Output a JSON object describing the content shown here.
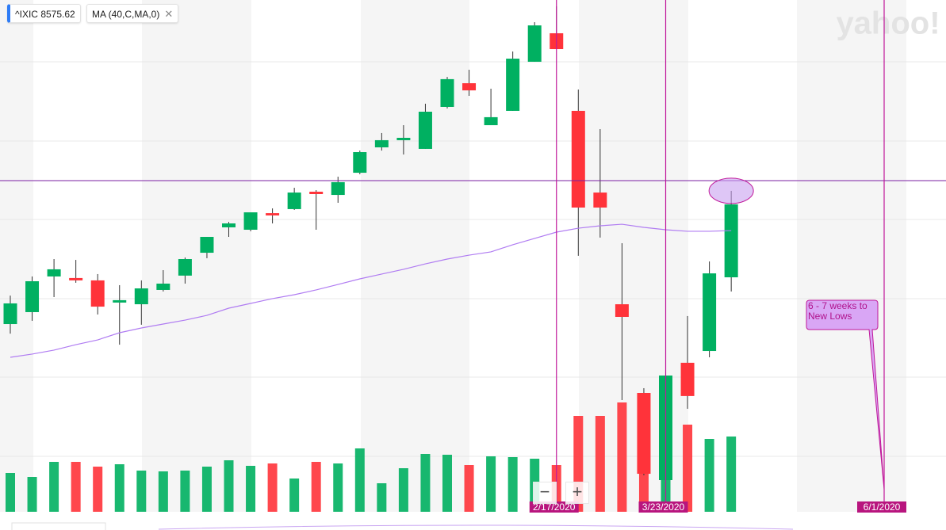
{
  "chart_data": {
    "type": "candlestick",
    "symbol": "^IXIC",
    "price": 8575.62,
    "indicator": "MA (40,C,MA,0)",
    "watermark": "yahoo!",
    "zoom_out": "−",
    "zoom_in": "+",
    "categories": [
      null,
      null,
      null,
      null,
      null,
      null,
      null,
      null,
      null,
      null,
      null,
      null,
      null,
      null,
      null,
      null,
      null,
      null,
      null,
      null,
      null,
      null,
      null,
      null,
      null,
      "2/17/2020",
      null,
      null,
      null,
      null,
      "3/23/2020",
      null,
      null,
      null,
      null,
      null,
      null,
      null,
      null,
      null,
      "6/1/2020"
    ],
    "open": [
      7691,
      7776,
      8030,
      8019,
      8002,
      7844,
      7832,
      7934,
      8036,
      8199,
      8380,
      8363,
      8481,
      8510,
      8634,
      8611,
      8769,
      8950,
      9001,
      8939,
      9238,
      9407,
      9108,
      9210,
      9560,
      9763,
      9210,
      8628,
      7832,
      7200,
      6579,
      7415,
      7499,
      8024,
      null,
      null,
      null,
      null,
      null,
      null,
      null
    ],
    "high": [
      7894,
      8030,
      8154,
      8148,
      8047,
      7968,
      8002,
      8075,
      8165,
      8312,
      8419,
      8487,
      8515,
      8662,
      8645,
      8741,
      8927,
      9052,
      9108,
      9261,
      9452,
      9503,
      9368,
      9633,
      9842,
      9955,
      9362,
      9080,
      8267,
      7234,
      7669,
      7748,
      8137,
      8640,
      null,
      null,
      null,
      null,
      null,
      null,
      null
    ],
    "low": [
      7623,
      7714,
      7883,
      7985,
      7759,
      7544,
      7686,
      7923,
      7979,
      8160,
      8312,
      8352,
      8408,
      8504,
      8363,
      8555,
      8758,
      8927,
      8899,
      8939,
      9227,
      9317,
      9108,
      9210,
      9560,
      9650,
      8177,
      8307,
      7149,
      6613,
      6579,
      7087,
      7454,
      7923,
      null,
      null,
      null,
      null,
      null,
      null,
      null
    ],
    "close": [
      7838,
      7996,
      8081,
      8002,
      7815,
      7861,
      7945,
      7979,
      8154,
      8312,
      8408,
      8487,
      8465,
      8628,
      8617,
      8702,
      8916,
      9001,
      9018,
      9204,
      9436,
      9356,
      9165,
      9582,
      9819,
      9650,
      8521,
      8521,
      7742,
      6624,
      7324,
      7178,
      8052,
      8544,
      null,
      null,
      null,
      null,
      null,
      null,
      null
    ],
    "up_color": "#00b061",
    "down_color": "#ff333a",
    "ma": {
      "color": "#b07cf2",
      "values": [
        7454,
        7477,
        7505,
        7544,
        7578,
        7629,
        7663,
        7691,
        7719,
        7753,
        7804,
        7838,
        7872,
        7900,
        7934,
        7973,
        8013,
        8047,
        8081,
        8120,
        8154,
        8182,
        8205,
        8256,
        8301,
        8346,
        8374,
        8391,
        8402,
        8380,
        8363,
        8352,
        8352,
        8357,
        null,
        null,
        null,
        null,
        null,
        null,
        null
      ]
    },
    "volume": [
      49,
      44,
      63,
      63,
      57,
      60,
      52,
      51,
      52,
      57,
      65,
      58,
      61,
      42,
      63,
      61,
      80,
      36,
      55,
      73,
      72,
      59,
      70,
      69,
      67,
      59,
      121,
      121,
      138,
      150,
      129,
      110,
      92,
      95,
      null,
      null,
      null,
      null,
      null,
      null,
      null
    ],
    "volume_lim": [
      0,
      200
    ],
    "ylim": [
      6500,
      10000
    ],
    "hline": {
      "value": 8713,
      "color": "#7a1fa2"
    },
    "vline_color": "#c0179a",
    "annotation": "6 - 7 weeks to New Lows"
  }
}
